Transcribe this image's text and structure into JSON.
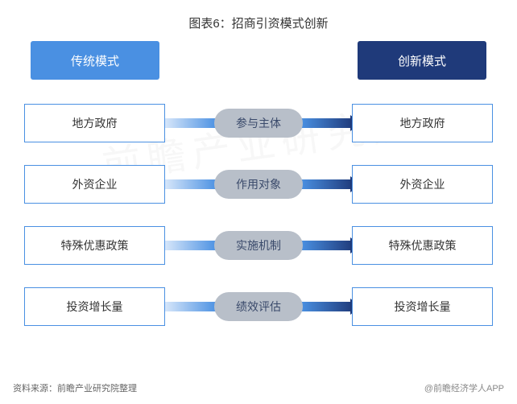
{
  "title": "图表6：招商引资模式创新",
  "watermark": "前瞻产业研究院",
  "headers": {
    "left": {
      "label": "传统模式",
      "bg": "#4a90e2"
    },
    "right": {
      "label": "创新模式",
      "bg": "#1f3a7a"
    }
  },
  "rows": [
    {
      "left": "地方政府",
      "middle": "参与主体",
      "right": "地方政府",
      "pill_bg": "#b8bfc9",
      "pill_color": "#3a4a6b",
      "grad_from": "#d6e6fa",
      "grad_to": "#4a90e2",
      "arrow_from": "#4a90e2",
      "arrow_to": "#1f3a7a",
      "border": "#4a90e2"
    },
    {
      "left": "外资企业",
      "middle": "作用对象",
      "right": "外资企业",
      "pill_bg": "#b8bfc9",
      "pill_color": "#3a4a6b",
      "grad_from": "#d6e6fa",
      "grad_to": "#4a90e2",
      "arrow_from": "#4a90e2",
      "arrow_to": "#1f3a7a",
      "border": "#4a90e2"
    },
    {
      "left": "特殊优惠政策",
      "middle": "实施机制",
      "right": "特殊优惠政策",
      "pill_bg": "#b8bfc9",
      "pill_color": "#3a4a6b",
      "grad_from": "#d6e6fa",
      "grad_to": "#4a90e2",
      "arrow_from": "#4a90e2",
      "arrow_to": "#1f3a7a",
      "border": "#4a90e2"
    },
    {
      "left": "投资增长量",
      "middle": "绩效评估",
      "right": "投资增长量",
      "pill_bg": "#b8bfc9",
      "pill_color": "#3a4a6b",
      "grad_from": "#d6e6fa",
      "grad_to": "#4a90e2",
      "arrow_from": "#4a90e2",
      "arrow_to": "#1f3a7a",
      "border": "#4a90e2"
    }
  ],
  "footer": {
    "source": "资料来源：前瞻产业研究院整理",
    "brand": "@前瞻经济学人APP"
  },
  "text_color": "#333333"
}
